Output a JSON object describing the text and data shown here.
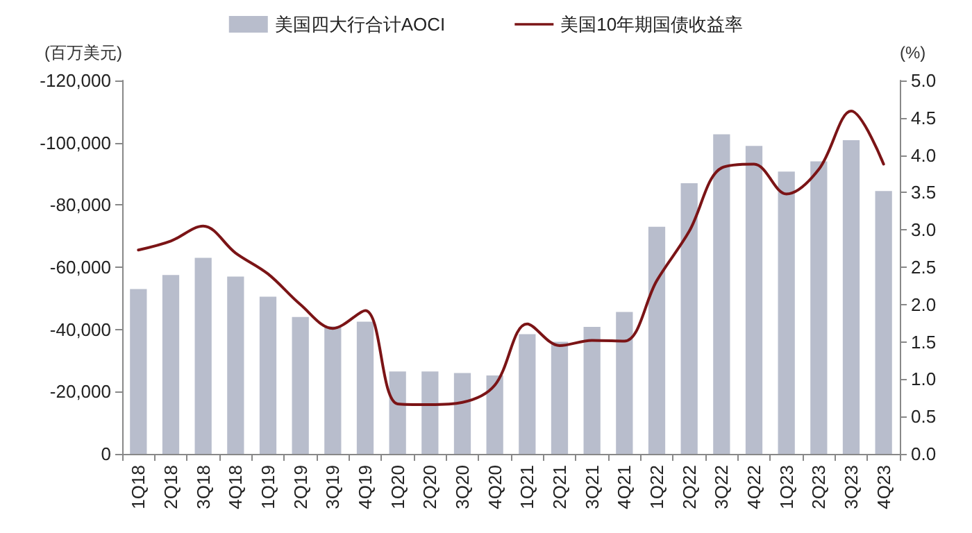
{
  "chart_data": {
    "type": "bar",
    "ylabel": "(百万美元)",
    "y2label": "(%)",
    "categories": [
      "1Q18",
      "2Q18",
      "3Q18",
      "4Q18",
      "1Q19",
      "2Q19",
      "3Q19",
      "4Q19",
      "1Q20",
      "2Q20",
      "3Q20",
      "4Q20",
      "1Q21",
      "2Q21",
      "3Q21",
      "4Q21",
      "1Q22",
      "2Q22",
      "3Q22",
      "4Q22",
      "1Q23",
      "2Q23",
      "3Q23",
      "4Q23"
    ],
    "series": [
      {
        "name": "美国四大行合计AOCI",
        "color": "#b8bdcc",
        "values": [
          -53000,
          -57500,
          -63000,
          -57000,
          -50500,
          -44000,
          -41000,
          -42500,
          -26500,
          -26500,
          -26000,
          -25200,
          -38500,
          -36000,
          -40800,
          -45600,
          -73000,
          -87000,
          -102700,
          -99000,
          -90700,
          -94000,
          -100800,
          -84500
        ]
      },
      {
        "name": "美国10年期国债收益率",
        "type": "line",
        "axis": "y2",
        "color": "#7b1416",
        "values": [
          2.73,
          2.85,
          3.05,
          2.69,
          2.41,
          2.0,
          1.68,
          1.92,
          0.67,
          0.66,
          0.69,
          0.92,
          1.74,
          1.45,
          1.52,
          1.51,
          2.32,
          2.98,
          3.83,
          3.88,
          3.48,
          3.81,
          4.59,
          3.88
        ]
      }
    ],
    "ylim": [
      0,
      -120000
    ],
    "yticks": [
      {
        "value": 0,
        "label": "0"
      },
      {
        "value": -20000,
        "label": "-20,000"
      },
      {
        "value": -40000,
        "label": "-40,000"
      },
      {
        "value": -60000,
        "label": "-60,000"
      },
      {
        "value": -80000,
        "label": "-80,000"
      },
      {
        "value": -100000,
        "label": "-100,000"
      },
      {
        "value": -120000,
        "label": "-120,000"
      }
    ],
    "y2lim": [
      0,
      5
    ],
    "y2ticks": [
      {
        "value": 0,
        "label": "0.0"
      },
      {
        "value": 0.5,
        "label": "0.5"
      },
      {
        "value": 1,
        "label": "1.0"
      },
      {
        "value": 1.5,
        "label": "1.5"
      },
      {
        "value": 2,
        "label": "2.0"
      },
      {
        "value": 2.5,
        "label": "2.5"
      },
      {
        "value": 3,
        "label": "3.0"
      },
      {
        "value": 3.5,
        "label": "3.5"
      },
      {
        "value": 4,
        "label": "4.0"
      },
      {
        "value": 4.5,
        "label": "4.5"
      },
      {
        "value": 5,
        "label": "5.0"
      }
    ],
    "grid": false,
    "legend": "top",
    "marker": "none",
    "line_style": "solid"
  }
}
